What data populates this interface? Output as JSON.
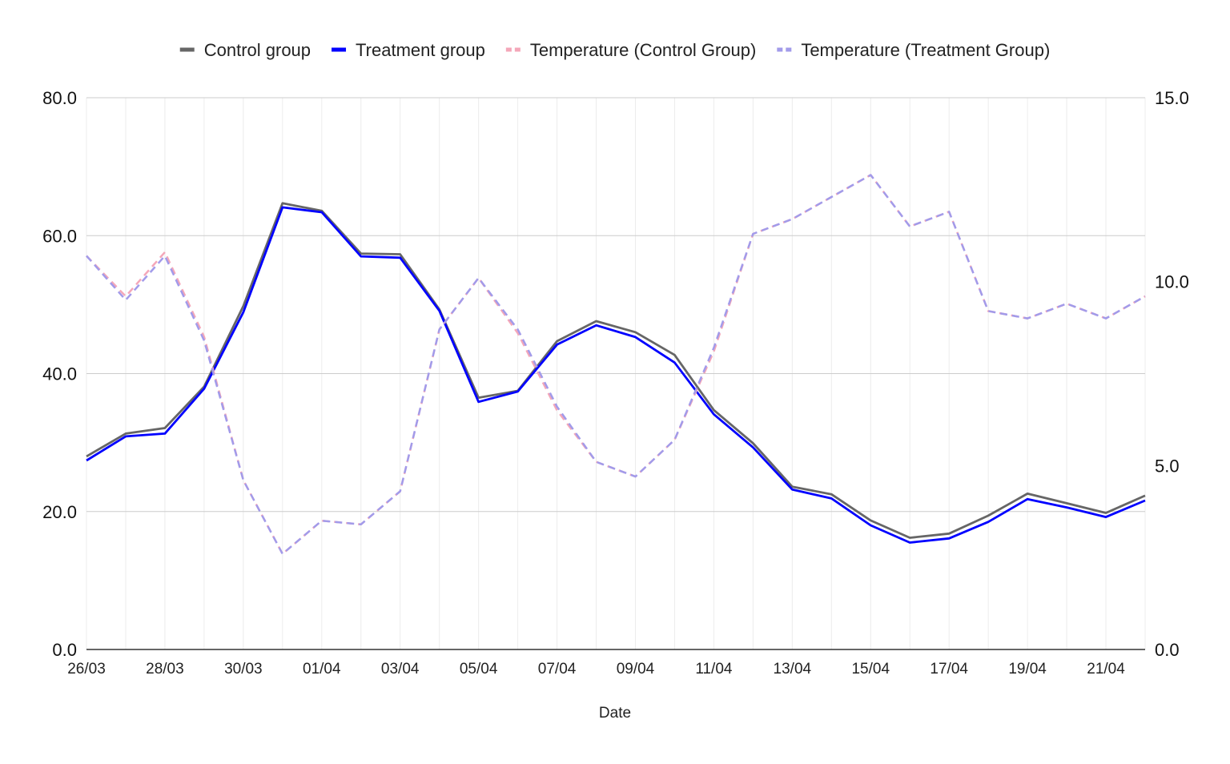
{
  "chart_data": {
    "type": "line",
    "xlabel": "Date",
    "x": [
      "26/03",
      "27/03",
      "28/03",
      "29/03",
      "30/03",
      "31/03",
      "01/04",
      "02/04",
      "03/04",
      "04/04",
      "05/04",
      "06/04",
      "07/04",
      "08/04",
      "09/04",
      "10/04",
      "11/04",
      "12/04",
      "13/04",
      "14/04",
      "15/04",
      "16/04",
      "17/04",
      "18/04",
      "19/04",
      "20/04",
      "21/04",
      "22/04"
    ],
    "x_tick_labels": [
      "26/03",
      "28/03",
      "30/03",
      "01/04",
      "03/04",
      "05/04",
      "07/04",
      "09/04",
      "11/04",
      "13/04",
      "15/04",
      "17/04",
      "19/04",
      "21/04"
    ],
    "y_left": {
      "min": 0,
      "max": 80,
      "ticks": [
        "0.0",
        "20.0",
        "40.0",
        "60.0",
        "80.0"
      ]
    },
    "y_right": {
      "min": 0,
      "max": 15,
      "ticks": [
        "0.0",
        "5.0",
        "10.0",
        "15.0"
      ]
    },
    "grid": true,
    "legend_position": "top",
    "series": [
      {
        "name": "Control group",
        "axis": "left",
        "style": "solid",
        "color": "#666666",
        "values": [
          28.0,
          31.3,
          32.1,
          38.1,
          49.8,
          64.7,
          63.6,
          57.4,
          57.3,
          49.3,
          36.5,
          37.5,
          44.7,
          47.6,
          46.0,
          42.7,
          34.7,
          29.9,
          23.6,
          22.5,
          18.7,
          16.2,
          16.8,
          19.4,
          22.6,
          21.2,
          19.8,
          22.3
        ]
      },
      {
        "name": "Treatment group",
        "axis": "left",
        "style": "solid",
        "color": "#0000ff",
        "values": [
          27.4,
          30.9,
          31.3,
          37.8,
          48.9,
          64.1,
          63.4,
          57.0,
          56.8,
          49.1,
          35.9,
          37.4,
          44.2,
          47.0,
          45.3,
          41.6,
          34.1,
          29.3,
          23.2,
          21.9,
          18.0,
          15.5,
          16.1,
          18.5,
          21.8,
          20.6,
          19.2,
          21.6
        ]
      },
      {
        "name": "Temperature (Control Group)",
        "axis": "right",
        "style": "dashed",
        "color": "#f4a7b9",
        "values": [
          10.7,
          9.6,
          10.8,
          8.5,
          4.6,
          2.6,
          3.5,
          3.4,
          4.3,
          8.7,
          10.1,
          8.6,
          6.5,
          5.1,
          4.7,
          5.7,
          8.1,
          11.3,
          11.7,
          12.3,
          12.9,
          11.5,
          11.9,
          9.2,
          9.0,
          9.4,
          9.0,
          9.6
        ]
      },
      {
        "name": "Temperature (Treatment Group)",
        "axis": "right",
        "style": "dashed",
        "color": "#a29bea",
        "values": [
          10.7,
          9.5,
          10.7,
          8.4,
          4.6,
          2.6,
          3.5,
          3.4,
          4.3,
          8.7,
          10.1,
          8.7,
          6.6,
          5.1,
          4.7,
          5.7,
          8.2,
          11.3,
          11.7,
          12.3,
          12.9,
          11.5,
          11.9,
          9.2,
          9.0,
          9.4,
          9.0,
          9.6
        ]
      }
    ]
  }
}
